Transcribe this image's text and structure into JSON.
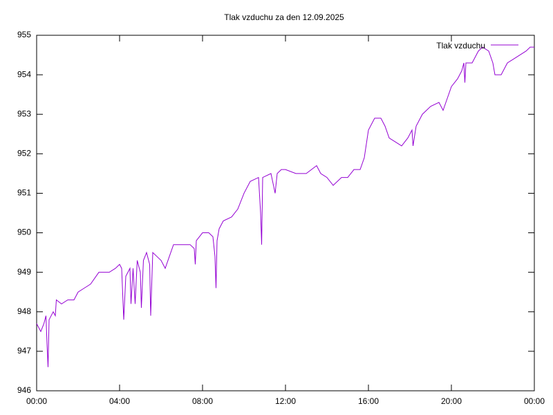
{
  "chart_data": {
    "type": "line",
    "title": "Tlak vzduchu za den 12.09.2025",
    "x": [
      0.0,
      0.1,
      0.2,
      0.35,
      0.45,
      0.5,
      0.55,
      0.6,
      0.8,
      0.9,
      0.95,
      1.2,
      1.5,
      1.8,
      2.0,
      2.3,
      2.6,
      3.0,
      3.5,
      3.8,
      4.0,
      4.1,
      4.2,
      4.3,
      4.5,
      4.55,
      4.65,
      4.75,
      4.85,
      5.0,
      5.05,
      5.15,
      5.3,
      5.45,
      5.5,
      5.6,
      5.8,
      6.0,
      6.2,
      6.4,
      6.6,
      7.0,
      7.4,
      7.6,
      7.65,
      7.7,
      8.0,
      8.3,
      8.5,
      8.6,
      8.65,
      8.7,
      8.8,
      9.0,
      9.4,
      9.7,
      10.0,
      10.3,
      10.7,
      10.8,
      10.85,
      10.9,
      11.3,
      11.5,
      11.6,
      11.8,
      12.0,
      12.5,
      13.0,
      13.5,
      13.7,
      14.0,
      14.3,
      14.7,
      15.0,
      15.3,
      15.6,
      15.8,
      16.0,
      16.3,
      16.6,
      16.8,
      17.0,
      17.3,
      17.6,
      17.9,
      18.1,
      18.15,
      18.3,
      18.6,
      19.0,
      19.4,
      19.6,
      19.8,
      20.0,
      20.3,
      20.5,
      20.6,
      20.65,
      20.7,
      21.0,
      21.3,
      21.5,
      21.8,
      22.0,
      22.1,
      22.4,
      22.7,
      23.0,
      23.3,
      23.6,
      23.8,
      24.0
    ],
    "series": [
      {
        "name": "Tlak vzduchu",
        "color": "#9400d3",
        "values": [
          947.7,
          947.6,
          947.5,
          947.7,
          947.9,
          947.2,
          946.6,
          947.8,
          948.0,
          947.9,
          948.3,
          948.2,
          948.3,
          948.3,
          948.5,
          948.6,
          948.7,
          949.0,
          949.0,
          949.1,
          949.2,
          949.1,
          947.8,
          948.9,
          949.1,
          948.2,
          949.1,
          948.2,
          949.3,
          949.0,
          948.1,
          949.3,
          949.5,
          949.2,
          947.9,
          949.5,
          949.4,
          949.3,
          949.1,
          949.4,
          949.7,
          949.7,
          949.7,
          949.6,
          949.2,
          949.8,
          950.0,
          950.0,
          949.9,
          949.4,
          948.6,
          949.8,
          950.1,
          950.3,
          950.4,
          950.6,
          951.0,
          951.3,
          951.4,
          950.5,
          949.7,
          951.4,
          951.5,
          951.0,
          951.5,
          951.6,
          951.6,
          951.5,
          951.5,
          951.7,
          951.5,
          951.4,
          951.2,
          951.4,
          951.4,
          951.6,
          951.6,
          951.9,
          952.6,
          952.9,
          952.9,
          952.7,
          952.4,
          952.3,
          952.2,
          952.4,
          952.6,
          952.2,
          952.7,
          953.0,
          953.2,
          953.3,
          953.1,
          953.4,
          953.7,
          953.9,
          954.1,
          954.3,
          953.8,
          954.3,
          954.3,
          954.6,
          954.7,
          954.6,
          954.3,
          954.0,
          954.0,
          954.3,
          954.4,
          954.5,
          954.6,
          954.7,
          954.7
        ]
      }
    ],
    "xlim": [
      0,
      24
    ],
    "xticks": [
      {
        "value": 0,
        "label": "00:00"
      },
      {
        "value": 4,
        "label": "04:00"
      },
      {
        "value": 8,
        "label": "08:00"
      },
      {
        "value": 12,
        "label": "12:00"
      },
      {
        "value": 16,
        "label": "16:00"
      },
      {
        "value": 20,
        "label": "20:00"
      },
      {
        "value": 24,
        "label": "00:00"
      }
    ],
    "ylim": [
      946,
      955
    ],
    "yticks": [
      946,
      947,
      948,
      949,
      950,
      951,
      952,
      953,
      954,
      955
    ],
    "legend": "top-right",
    "grid": false
  }
}
